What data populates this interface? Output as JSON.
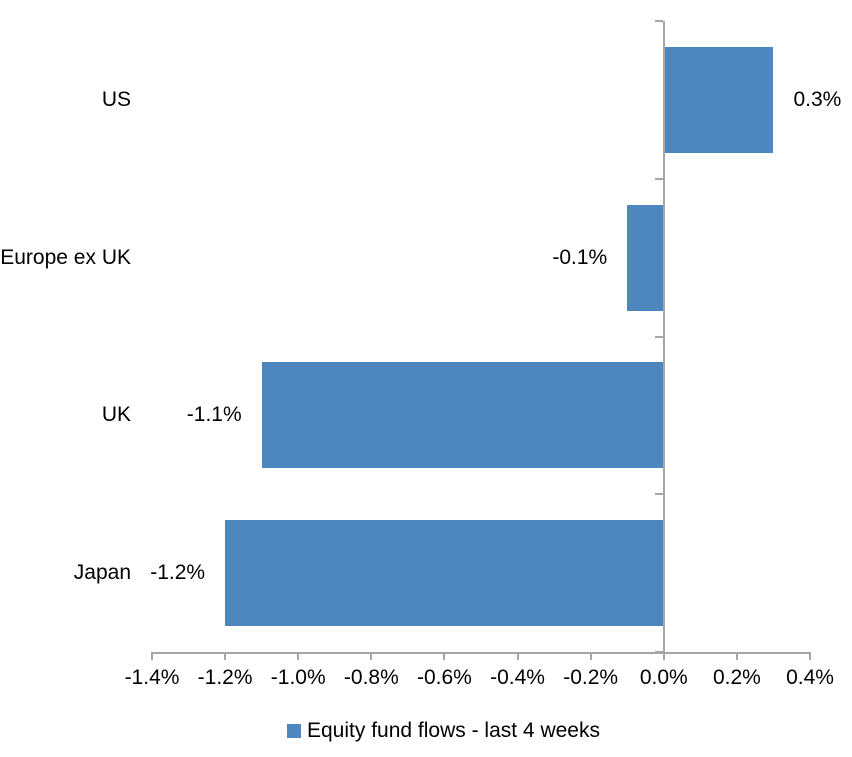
{
  "chart_data": {
    "type": "bar",
    "orientation": "horizontal",
    "categories": [
      "US",
      "Europe ex UK",
      "UK",
      "Japan"
    ],
    "values": [
      0.3,
      -0.1,
      -1.1,
      -1.2
    ],
    "data_labels": [
      "0.3%",
      "-0.1%",
      "-1.1%",
      "-1.2%"
    ],
    "x_axis": {
      "min": -1.4,
      "max": 0.4,
      "step": 0.2,
      "tick_labels": [
        "-1.4%",
        "-1.2%",
        "-1.0%",
        "-0.8%",
        "-0.6%",
        "-0.4%",
        "-0.2%",
        "0.0%",
        "0.2%",
        "0.4%"
      ]
    },
    "grid": false,
    "legend": {
      "position": "bottom",
      "label": "Equity fund flows - last 4 weeks"
    },
    "colors": {
      "bar": "#4E87BD",
      "axis": "#A6A6A6",
      "text": "#000000"
    }
  }
}
